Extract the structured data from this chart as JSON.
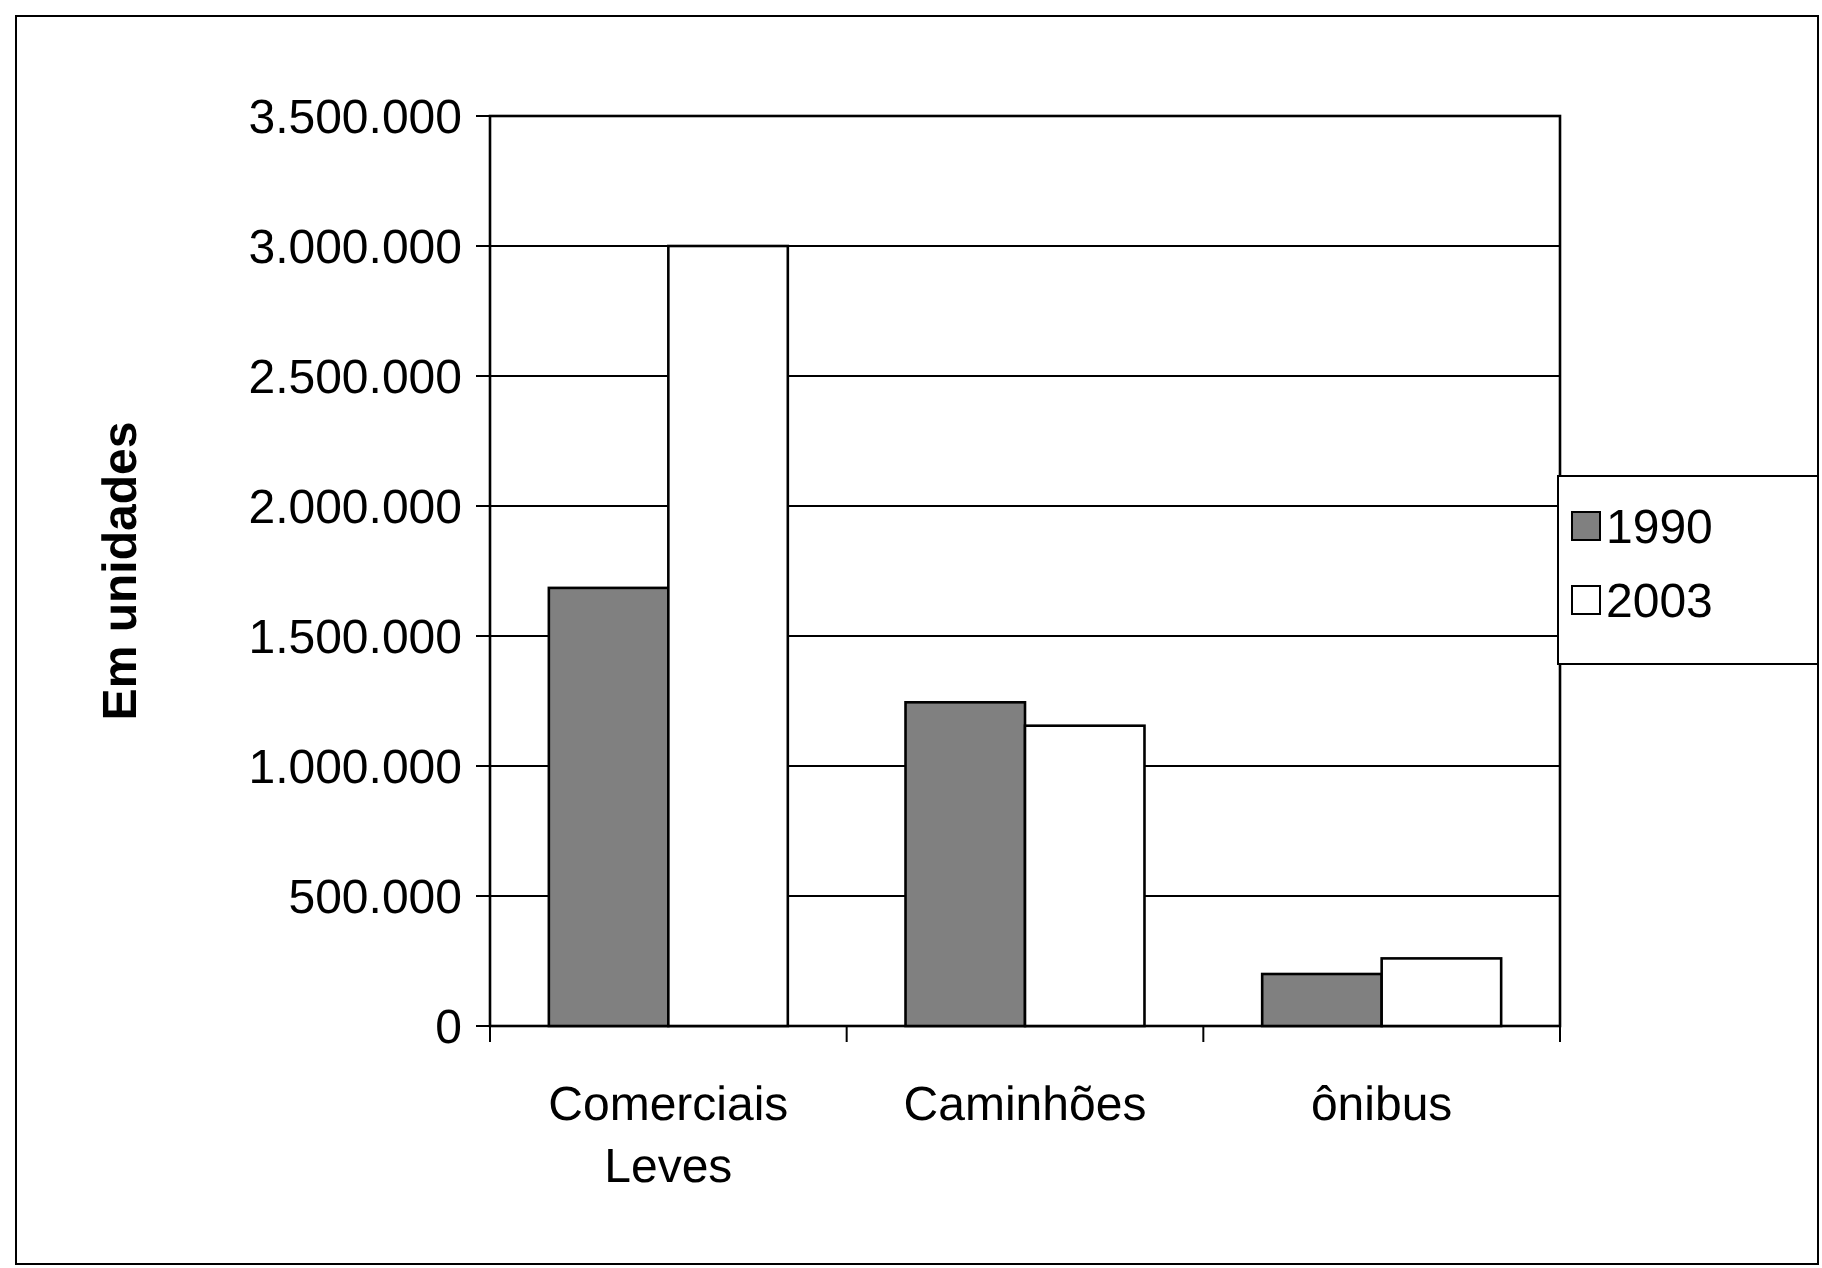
{
  "chart_data": {
    "type": "bar",
    "ylabel": "Em unidades",
    "categories": [
      "Comerciais Leves",
      "Caminhões",
      "ônibus"
    ],
    "series": [
      {
        "name": "1990",
        "color": "#808080",
        "values": [
          1685000,
          1245000,
          200000
        ]
      },
      {
        "name": "2003",
        "color": "#ffffff",
        "values": [
          3000000,
          1155000,
          260000
        ]
      }
    ],
    "ylim": [
      0,
      3500000
    ],
    "yticks": [
      {
        "value": 0,
        "label": "0"
      },
      {
        "value": 500000,
        "label": "500.000"
      },
      {
        "value": 1000000,
        "label": "1.000.000"
      },
      {
        "value": 1500000,
        "label": "1.500.000"
      },
      {
        "value": 2000000,
        "label": "2.000.000"
      },
      {
        "value": 2500000,
        "label": "2.500.000"
      },
      {
        "value": 3000000,
        "label": "3.000.000"
      },
      {
        "value": 3500000,
        "label": "3.500.000"
      }
    ],
    "grid": "y",
    "legend": "right"
  }
}
